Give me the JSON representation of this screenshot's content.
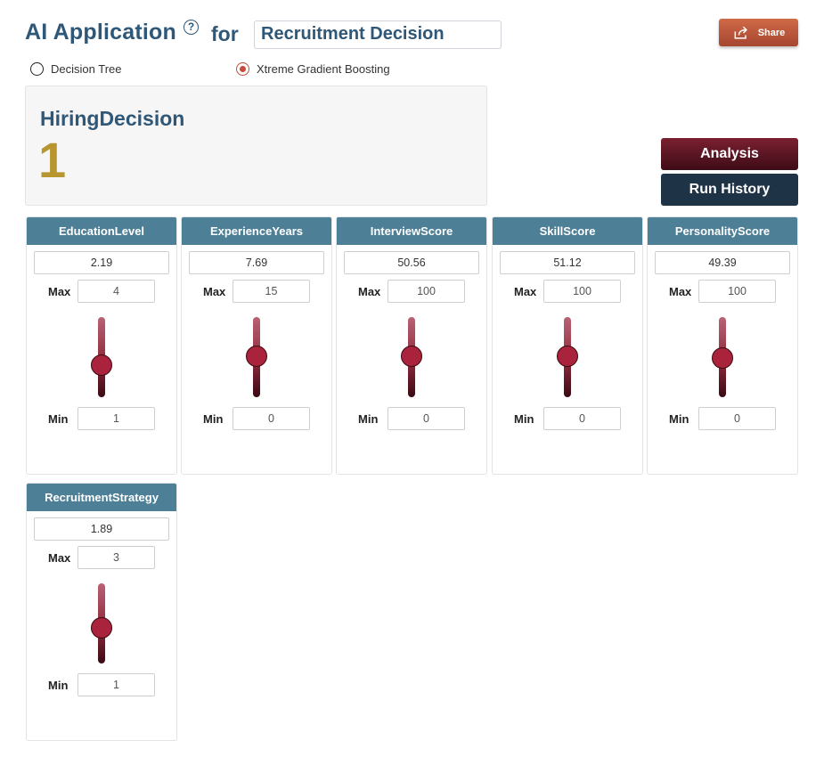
{
  "header": {
    "title": "AI Application",
    "help_glyph": "?",
    "for_label": "for",
    "app_name": "Recruitment Decision",
    "share_label": "Share"
  },
  "models": [
    {
      "label": "Decision Tree",
      "selected": false
    },
    {
      "label": "Xtreme Gradient Boosting",
      "selected": true
    }
  ],
  "result": {
    "label": "HiringDecision",
    "value": "1"
  },
  "actions": {
    "analysis_label": "Analysis",
    "history_label": "Run History"
  },
  "variables": [
    {
      "name": "EducationLevel",
      "value": "2.19",
      "max": "4",
      "min": "1",
      "fraction": 0.397
    },
    {
      "name": "ExperienceYears",
      "value": "7.69",
      "max": "15",
      "min": "0",
      "fraction": 0.513
    },
    {
      "name": "InterviewScore",
      "value": "50.56",
      "max": "100",
      "min": "0",
      "fraction": 0.506
    },
    {
      "name": "SkillScore",
      "value": "51.12",
      "max": "100",
      "min": "0",
      "fraction": 0.511
    },
    {
      "name": "PersonalityScore",
      "value": "49.39",
      "max": "100",
      "min": "0",
      "fraction": 0.494
    },
    {
      "name": "RecruitmentStrategy",
      "value": "1.89",
      "max": "3",
      "min": "1",
      "fraction": 0.445
    }
  ],
  "labels": {
    "max": "Max",
    "min": "Min"
  },
  "colors": {
    "accent": "#2f5777",
    "header": "#4d7f96",
    "result": "#b8962f",
    "share": "#b9553a",
    "thumb": "#a8233b"
  }
}
